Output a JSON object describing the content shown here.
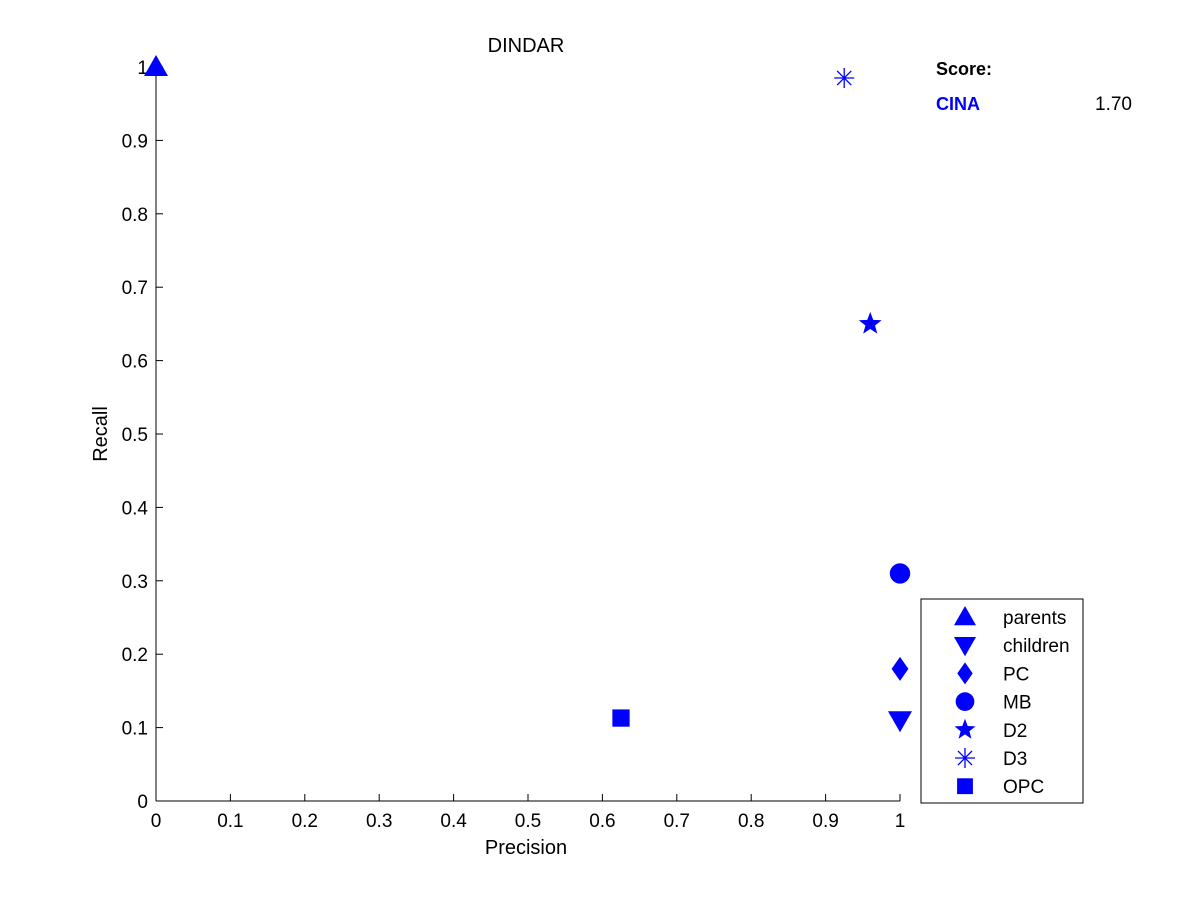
{
  "chart_data": {
    "type": "scatter",
    "title": "DINDAR",
    "xlabel": "Precision",
    "ylabel": "Recall",
    "xlim": [
      0,
      1
    ],
    "ylim": [
      0,
      1
    ],
    "xticks": [
      "0",
      "0.1",
      "0.2",
      "0.3",
      "0.4",
      "0.5",
      "0.6",
      "0.7",
      "0.8",
      "0.9",
      "1"
    ],
    "yticks": [
      "0",
      "0.1",
      "0.2",
      "0.3",
      "0.4",
      "0.5",
      "0.6",
      "0.7",
      "0.8",
      "0.9",
      "1"
    ],
    "grid": false,
    "legend_position": "bottom-right",
    "marker_color": "#0000ff",
    "series": [
      {
        "name": "parents",
        "marker": "triangle-up",
        "x": 0.0,
        "y": 1.0
      },
      {
        "name": "children",
        "marker": "triangle-down",
        "x": 1.0,
        "y": 0.11
      },
      {
        "name": "PC",
        "marker": "diamond",
        "x": 1.0,
        "y": 0.18
      },
      {
        "name": "MB",
        "marker": "circle",
        "x": 1.0,
        "y": 0.31
      },
      {
        "name": "D2",
        "marker": "star",
        "x": 0.96,
        "y": 0.65
      },
      {
        "name": "D3",
        "marker": "asterisk",
        "x": 0.925,
        "y": 0.985
      },
      {
        "name": "OPC",
        "marker": "square",
        "x": 0.625,
        "y": 0.113
      }
    ],
    "score": {
      "header": "Score:",
      "dataset": "CINA",
      "value": "1.70"
    }
  }
}
